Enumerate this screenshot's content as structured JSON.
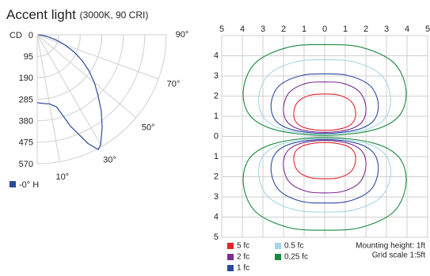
{
  "chart_data": [
    {
      "type": "polar",
      "title": "Accent light",
      "subtitle": "(3000K, 90 CRI)",
      "radial_label": "CD",
      "x": [
        0,
        5,
        10,
        15,
        20,
        25,
        28,
        30,
        35,
        40,
        45,
        50,
        55,
        60,
        65,
        70,
        75,
        80,
        85,
        90
      ],
      "series": [
        {
          "name": "-0° H",
          "color": "#2c4a9a",
          "values": [
            300,
            305,
            310,
            330,
            430,
            530,
            575,
            560,
            500,
            440,
            380,
            330,
            280,
            230,
            180,
            130,
            85,
            45,
            20,
            5
          ]
        }
      ],
      "xlim": [
        0,
        90
      ],
      "xticks": [
        {
          "value": 10,
          "label": "10°"
        },
        {
          "value": 30,
          "label": "30°"
        },
        {
          "value": 50,
          "label": "50°"
        },
        {
          "value": 70,
          "label": "70°"
        },
        {
          "value": 90,
          "label": "90°"
        }
      ],
      "ylim": [
        0,
        570
      ],
      "yticks": [
        0,
        95,
        190,
        285,
        380,
        475,
        570
      ]
    },
    {
      "type": "contour",
      "xlim": [
        -5,
        5
      ],
      "ylim": [
        -5,
        5
      ],
      "xticks": [
        {
          "value": -5,
          "label": "5"
        },
        {
          "value": -4,
          "label": "4"
        },
        {
          "value": -3,
          "label": "3"
        },
        {
          "value": -2,
          "label": "2"
        },
        {
          "value": -1,
          "label": "1"
        },
        0,
        1,
        2,
        3,
        4,
        5
      ],
      "yticks": [
        4,
        3,
        2,
        1,
        0,
        {
          "value": -1,
          "label": "1"
        },
        {
          "value": -2,
          "label": "2"
        },
        {
          "value": -3,
          "label": "3"
        },
        {
          "value": -4,
          "label": "4"
        },
        {
          "value": -5,
          "label": "5"
        }
      ],
      "notes": [
        "Mounting height: 1ft",
        "Grid scale  1:5ft"
      ],
      "series": [
        {
          "name": "5 fc",
          "color": "#e3262d",
          "lobes": [
            {
              "x": [
                0,
                -0.9,
                -1.38,
                -1.5,
                -1.28,
                -0.68,
                0,
                0.68,
                1.28,
                1.5,
                1.38,
                0.9
              ],
              "y": [
                0.3,
                0.41,
                0.7,
                1.2,
                1.74,
                2.05,
                2.1,
                2.05,
                1.74,
                1.2,
                0.7,
                0.41
              ]
            },
            {
              "x": [
                0,
                -0.9,
                -1.38,
                -1.5,
                -1.28,
                -0.68,
                0,
                0.68,
                1.28,
                1.5,
                1.38,
                0.9
              ],
              "y": [
                -0.3,
                -0.41,
                -0.7,
                -1.2,
                -1.74,
                -2.05,
                -2.1,
                -2.05,
                -1.74,
                -1.2,
                -0.7,
                -0.41
              ]
            }
          ]
        },
        {
          "name": "2 fc",
          "color": "#7b2d8e",
          "lobes": [
            {
              "x": [
                0,
                -1.2,
                -1.84,
                -2,
                -1.7,
                -0.9,
                0,
                0.9,
                1.7,
                2,
                1.84,
                1.2
              ],
              "y": [
                0.2,
                0.35,
                0.75,
                1.45,
                2.2,
                2.63,
                2.7,
                2.63,
                2.2,
                1.45,
                0.75,
                0.35
              ]
            },
            {
              "x": [
                0,
                -1.2,
                -1.84,
                -2,
                -1.7,
                -0.9,
                0,
                0.9,
                1.7,
                2,
                1.84,
                1.2
              ],
              "y": [
                -0.2,
                -0.36,
                -0.77,
                -1.5,
                -2.28,
                -2.72,
                -2.8,
                -2.72,
                -2.28,
                -1.5,
                -0.77,
                -0.36
              ]
            }
          ]
        },
        {
          "name": "1 fc",
          "color": "#2e4a9e",
          "lobes": [
            {
              "x": [
                0,
                -1.56,
                -2.39,
                -2.6,
                -2.21,
                -1.17,
                0,
                1.17,
                2.21,
                2.6,
                2.39,
                1.56
              ],
              "y": [
                0.15,
                0.33,
                0.8,
                1.63,
                2.51,
                3.01,
                3.1,
                3.01,
                2.51,
                1.63,
                0.8,
                0.33
              ]
            },
            {
              "x": [
                0,
                -1.56,
                -2.39,
                -2.6,
                -2.21,
                -1.17,
                0,
                1.17,
                2.21,
                2.6,
                2.39,
                1.56
              ],
              "y": [
                -0.15,
                -0.34,
                -0.84,
                -1.73,
                -2.67,
                -3.21,
                -3.3,
                -3.21,
                -2.67,
                -1.73,
                -0.84,
                -0.34
              ]
            }
          ]
        },
        {
          "name": "0.5 fc",
          "color": "#a6d6e6",
          "lobes": [
            {
              "x": [
                0,
                -1.92,
                -2.94,
                -3.2,
                -2.72,
                -1.44,
                0,
                1.44,
                2.72,
                3.2,
                2.94,
                1.92
              ],
              "y": [
                0.1,
                0.32,
                0.91,
                1.95,
                3.06,
                3.69,
                3.8,
                3.69,
                3.06,
                1.95,
                0.91,
                0.32
              ]
            },
            {
              "x": [
                0,
                -1.92,
                -2.94,
                -3.2,
                -2.72,
                -1.44,
                0,
                1.44,
                2.72,
                3.2,
                2.94,
                1.92
              ],
              "y": [
                -0.1,
                -0.32,
                -0.9,
                -1.93,
                -3.02,
                -3.64,
                -3.75,
                -3.64,
                -3.02,
                -1.93,
                -0.9,
                -0.32
              ]
            }
          ]
        },
        {
          "name": "0,25 fc",
          "color": "#1a8a3f",
          "lobes": [
            {
              "x": [
                0,
                -2.37,
                -3.63,
                -3.95,
                -3.36,
                -1.78,
                0,
                1.78,
                3.36,
                3.95,
                3.63,
                2.37
              ],
              "y": [
                0.05,
                0.32,
                1.04,
                2.3,
                3.65,
                4.42,
                4.55,
                4.42,
                3.65,
                2.3,
                1.04,
                0.32
              ]
            },
            {
              "x": [
                0,
                -2.37,
                -3.63,
                -3.95,
                -3.36,
                -1.78,
                0,
                1.78,
                3.36,
                3.95,
                3.63,
                2.37
              ],
              "y": [
                -0.05,
                -0.33,
                -1.06,
                -2.35,
                -3.73,
                -4.51,
                -4.65,
                -4.51,
                -3.73,
                -2.35,
                -1.06,
                -0.33
              ]
            }
          ]
        }
      ]
    }
  ]
}
